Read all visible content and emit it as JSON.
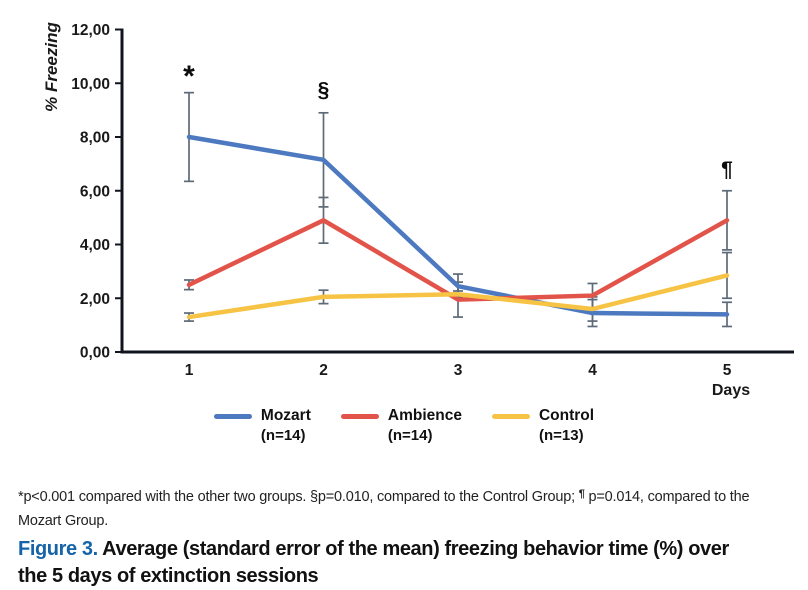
{
  "chart_data": {
    "type": "line",
    "title": "",
    "xlabel": "Days",
    "ylabel": "% Freezing",
    "x": [
      1,
      2,
      3,
      4,
      5
    ],
    "ylim": [
      0,
      12
    ],
    "grid": false,
    "legend_position": "bottom",
    "axis_color": "#10141f",
    "error_color": "#5d6a77",
    "yticks": [
      {
        "value": 0,
        "label": "0,00"
      },
      {
        "value": 2,
        "label": "2,00"
      },
      {
        "value": 4,
        "label": "4,00"
      },
      {
        "value": 6,
        "label": "6,00"
      },
      {
        "value": 8,
        "label": "8,00"
      },
      {
        "value": 10,
        "label": "10,00"
      },
      {
        "value": 12,
        "label": "12,00"
      }
    ],
    "series": [
      {
        "name": "Mozart",
        "n_label": "(n=14)",
        "color": "#4c79c0",
        "values": [
          8.0,
          7.15,
          2.45,
          1.45,
          1.4
        ],
        "sem": [
          1.65,
          1.75,
          0.45,
          0.5,
          0.45
        ]
      },
      {
        "name": "Ambience",
        "n_label": "(n=14)",
        "color": "#e2544a",
        "values": [
          2.5,
          4.9,
          1.95,
          2.1,
          4.9
        ],
        "sem": [
          0.18,
          0.85,
          0.65,
          0.45,
          1.1
        ]
      },
      {
        "name": "Control",
        "n_label": "(n=13)",
        "color": "#f6c344",
        "values": [
          1.3,
          2.05,
          2.15,
          1.6,
          2.85
        ],
        "sem": [
          0.15,
          0.25,
          0.12,
          0.45,
          0.85
        ]
      }
    ],
    "annotations": [
      {
        "text": "*",
        "x": 1,
        "y": 9.9
      },
      {
        "text": "§",
        "x": 2,
        "y": 9.5
      },
      {
        "text": "¶",
        "x": 5,
        "y": 6.55
      }
    ]
  },
  "footnote": {
    "part1": "*p<0.001 compared with the other two groups. §p=0.010, compared to the Control Group; ",
    "sup": "¶",
    "part2": " p=0.014, compared to the Mozart Group."
  },
  "caption": {
    "label": "Figure 3.",
    "text": "Average (standard error of the mean) freezing behavior time (%) over the 5 days of extinction sessions"
  }
}
